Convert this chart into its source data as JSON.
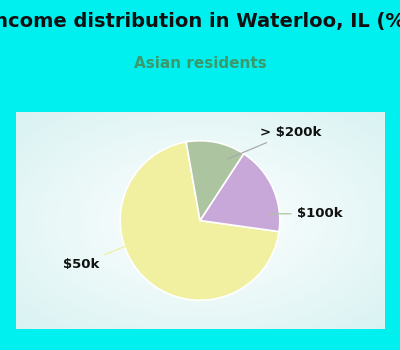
{
  "title": "Income distribution in Waterloo, IL (%)",
  "subtitle": "Asian residents",
  "title_color": "#111111",
  "subtitle_color": "#3a9a6e",
  "bg_color": "#00f0f0",
  "chart_bg_color": "#e8f5ef",
  "slices": [
    {
      "label": "$50k",
      "value": 70,
      "color": "#f0f0a0"
    },
    {
      "label": "> $200k",
      "value": 18,
      "color": "#c8a8d8"
    },
    {
      "label": "$100k",
      "value": 12,
      "color": "#adc4a0"
    }
  ],
  "label_fontsize": 9.5,
  "title_fontsize": 14,
  "subtitle_fontsize": 11,
  "startangle": 100
}
